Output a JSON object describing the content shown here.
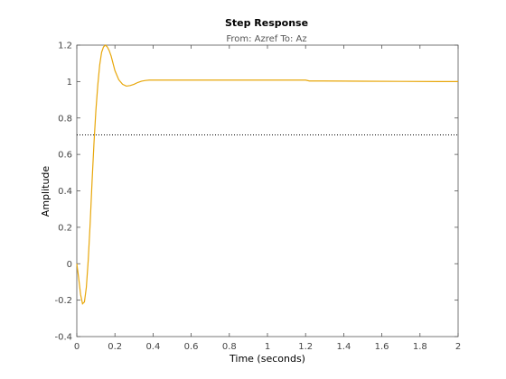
{
  "chart_data": {
    "type": "line",
    "title": "Step Response",
    "subtitle": "From: Azref  To: Az",
    "xlabel": "Time (seconds)",
    "ylabel": "Amplitude",
    "xlim": [
      0,
      2
    ],
    "ylim": [
      -0.4,
      1.2
    ],
    "xticks": [
      "0",
      "0.2",
      "0.4",
      "0.6",
      "0.8",
      "1",
      "1.2",
      "1.4",
      "1.6",
      "1.8",
      "2"
    ],
    "yticks": [
      "-0.4",
      "-0.2",
      "0",
      "0.2",
      "0.4",
      "0.6",
      "0.8",
      "1",
      "1.2"
    ],
    "grid": false,
    "reference_line": {
      "y": 0.707,
      "style": "dotted",
      "color": "#000000"
    },
    "series": [
      {
        "color": "#e8a70b",
        "x": [
          0,
          0.01,
          0.02,
          0.03,
          0.04,
          0.05,
          0.06,
          0.07,
          0.08,
          0.09,
          0.1,
          0.11,
          0.12,
          0.13,
          0.14,
          0.15,
          0.16,
          0.17,
          0.18,
          0.19,
          0.2,
          0.22,
          0.24,
          0.26,
          0.28,
          0.3,
          0.32,
          0.34,
          0.36,
          0.38,
          0.4,
          0.5,
          0.6,
          0.8,
          1.0,
          1.2,
          1.22,
          1.3,
          1.5,
          1.7,
          1.9,
          2.0
        ],
        "y": [
          0,
          -0.08,
          -0.17,
          -0.22,
          -0.21,
          -0.13,
          0.02,
          0.22,
          0.45,
          0.66,
          0.84,
          0.98,
          1.09,
          1.16,
          1.19,
          1.2,
          1.19,
          1.17,
          1.14,
          1.1,
          1.06,
          1.01,
          0.985,
          0.975,
          0.978,
          0.985,
          0.995,
          1.002,
          1.006,
          1.008,
          1.008,
          1.008,
          1.008,
          1.008,
          1.008,
          1.008,
          1.003,
          1.003,
          1.002,
          1.001,
          1.0,
          1.0
        ]
      }
    ]
  },
  "colors": {
    "axes": "#555555",
    "background": "#ffffff",
    "line": "#e8a70b"
  }
}
